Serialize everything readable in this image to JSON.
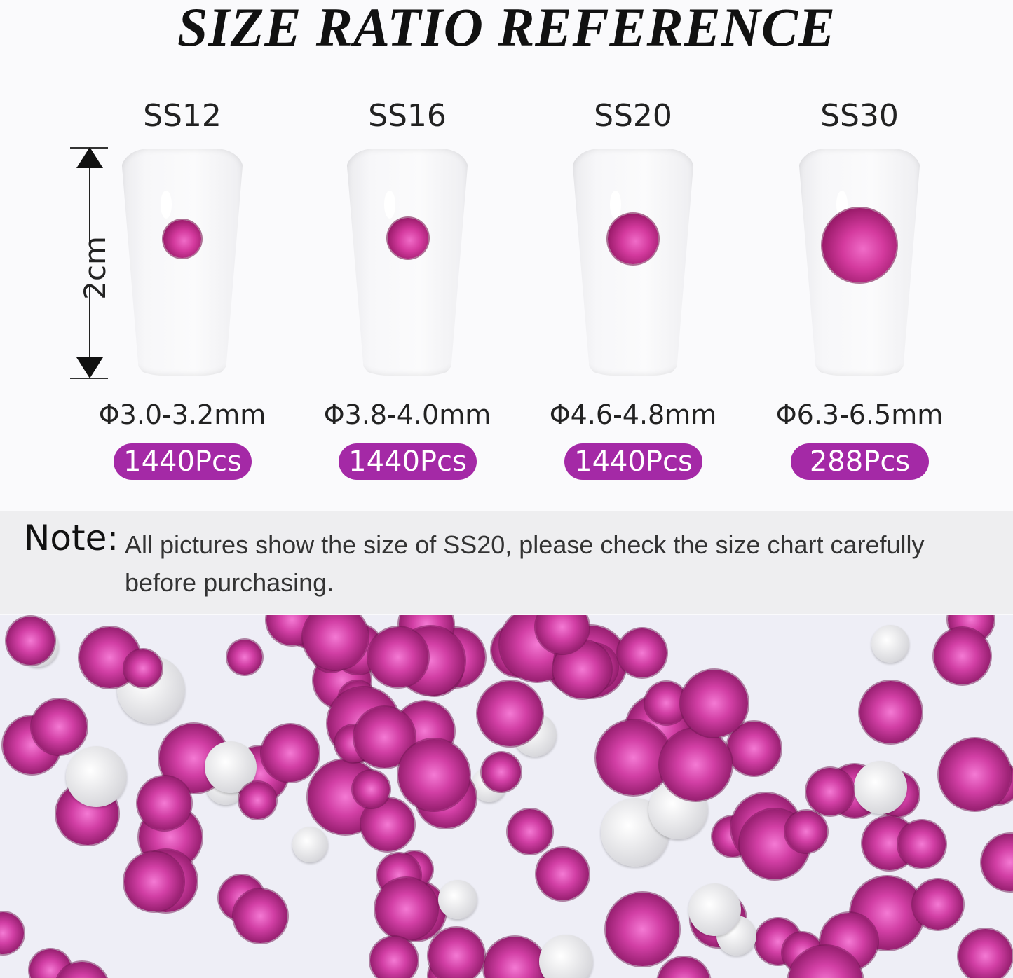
{
  "title": "SIZE RATIO REFERENCE",
  "ruler_label": "2cm",
  "sizes": [
    {
      "name": "SS12",
      "diameter": "Φ3.0-3.2mm",
      "count": "1440Pcs"
    },
    {
      "name": "SS16",
      "diameter": "Φ3.8-4.0mm",
      "count": "1440Pcs"
    },
    {
      "name": "SS20",
      "diameter": "Φ4.6-4.8mm",
      "count": "1440Pcs"
    },
    {
      "name": "SS30",
      "diameter": "Φ6.3-6.5mm",
      "count": "288Pcs"
    }
  ],
  "note": {
    "label": "Note:",
    "text": "All pictures show the size of SS20, please check the size chart carefully before purchasing."
  },
  "colors": {
    "accent": "#a429a6",
    "gem": "#d43a9e",
    "note_bg": "#eeeef0"
  }
}
